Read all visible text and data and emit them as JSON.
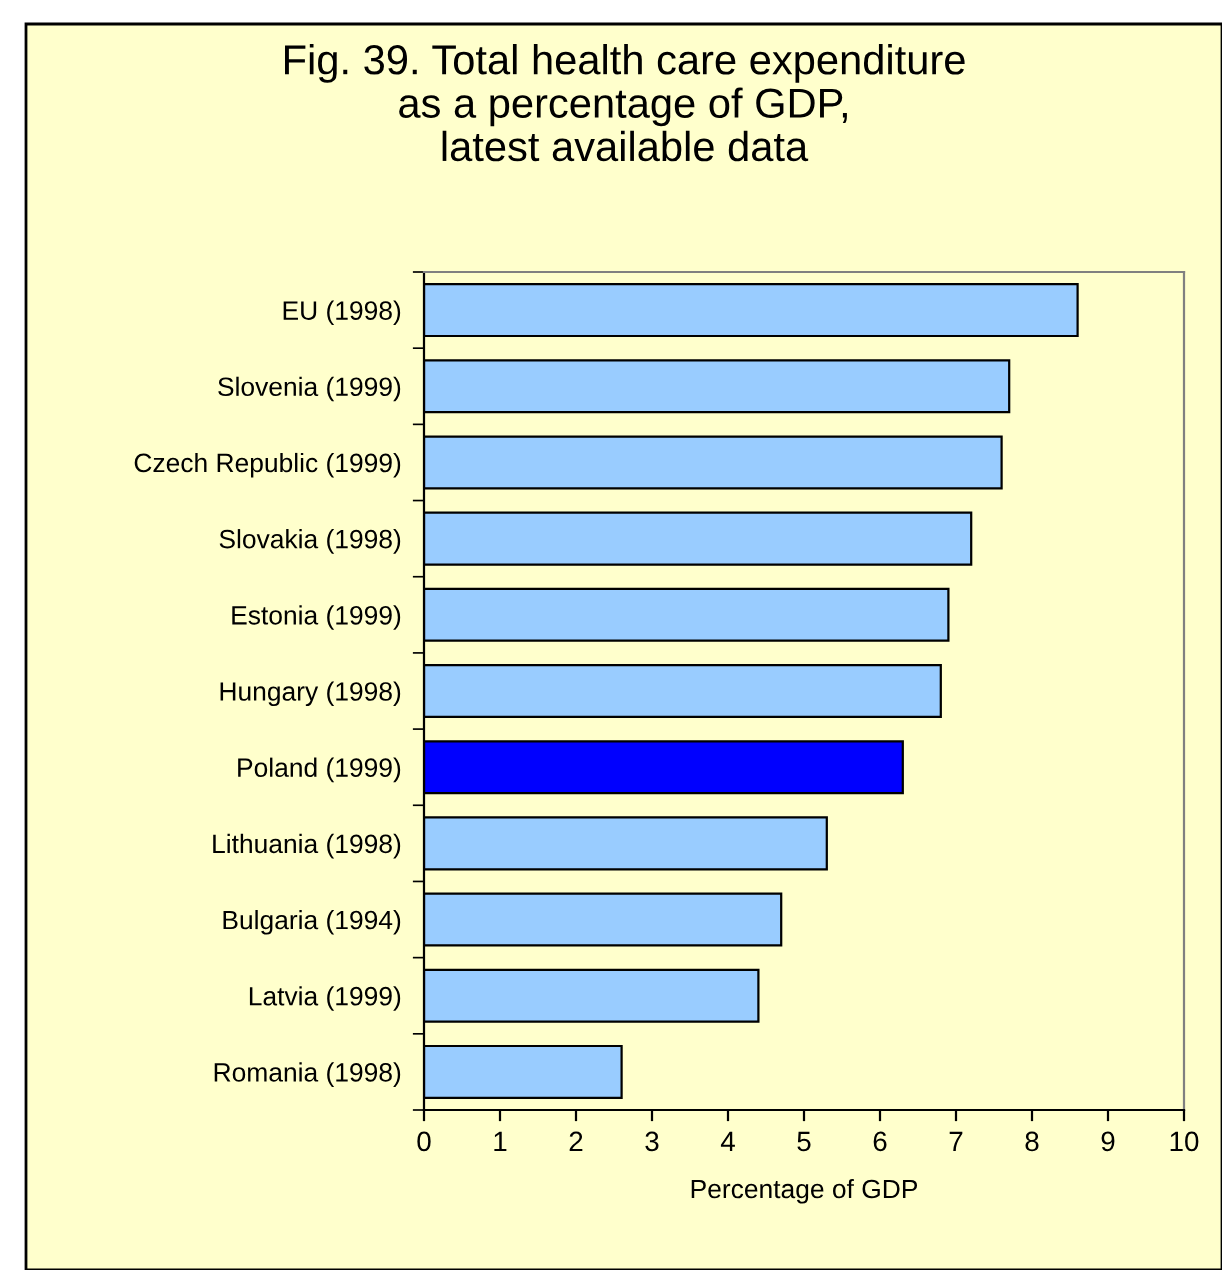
{
  "chart_data": {
    "type": "bar",
    "orientation": "horizontal",
    "title": "Fig. 39. Total health care expenditure\nas a percentage of GDP,\nlatest available data",
    "xlabel": "Percentage of GDP",
    "categories": [
      "EU (1998)",
      "Slovenia (1999)",
      "Czech Republic (1999)",
      "Slovakia (1998)",
      "Estonia (1999)",
      "Hungary (1998)",
      "Poland (1999)",
      "Lithuania (1998)",
      "Bulgaria (1994)",
      "Latvia (1999)",
      "Romania (1998)"
    ],
    "values": [
      8.6,
      7.7,
      7.6,
      7.2,
      6.9,
      6.8,
      6.3,
      5.3,
      4.7,
      4.4,
      2.6
    ],
    "colors": [
      "#99ccff",
      "#99ccff",
      "#99ccff",
      "#99ccff",
      "#99ccff",
      "#99ccff",
      "#0000ff",
      "#99ccff",
      "#99ccff",
      "#99ccff",
      "#99ccff"
    ],
    "xlim": [
      0,
      10
    ],
    "xticks": [
      0,
      1,
      2,
      3,
      4,
      5,
      6,
      7,
      8,
      9,
      10
    ],
    "grid": false,
    "legend": false
  }
}
